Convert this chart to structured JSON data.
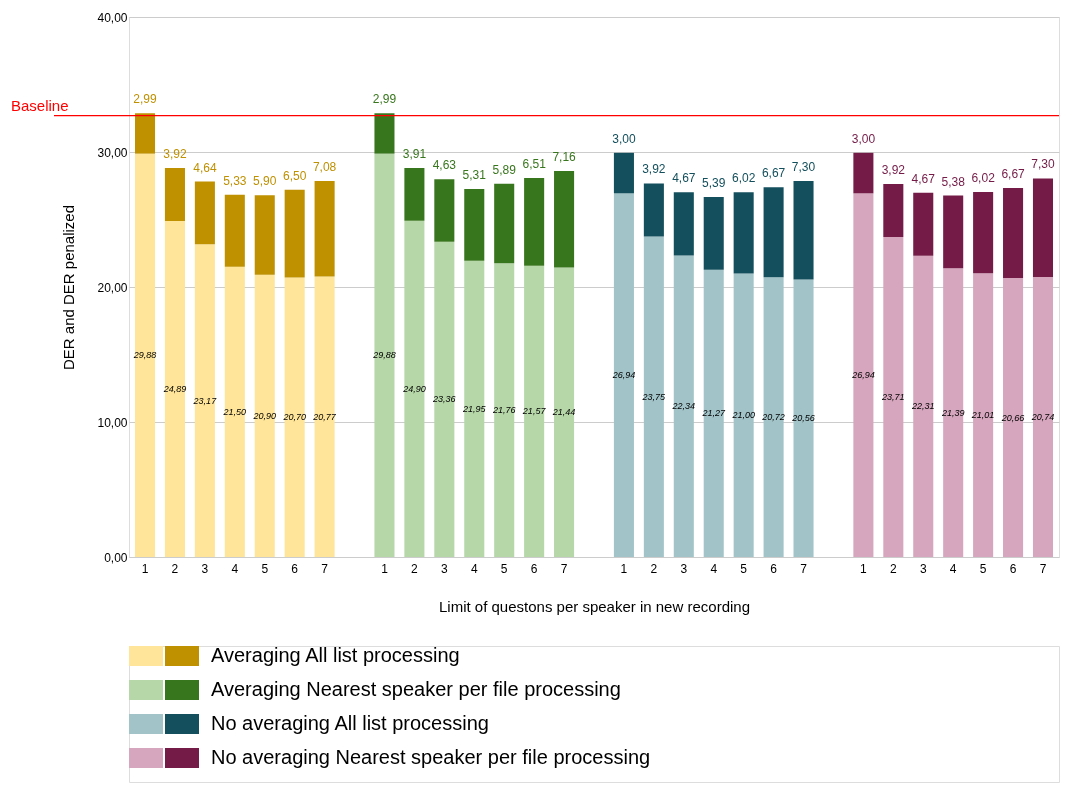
{
  "chart_data": {
    "type": "bar",
    "stacked": true,
    "xlabel": "Limit of questons per speaker in new recording",
    "ylabel": "DER and DER penalized",
    "categories": [
      "1",
      "2",
      "3",
      "4",
      "5",
      "6",
      "7",
      null,
      "1",
      "2",
      "3",
      "4",
      "5",
      "6",
      "7",
      null,
      "1",
      "2",
      "3",
      "4",
      "5",
      "6",
      "7",
      null,
      "1",
      "2",
      "3",
      "4",
      "5",
      "6",
      "7"
    ],
    "ylim": [
      0,
      40
    ],
    "yticks": [
      {
        "value": 0,
        "label": "0,00"
      },
      {
        "value": 10,
        "label": "10,00"
      },
      {
        "value": 20,
        "label": "20,00"
      },
      {
        "value": 30,
        "label": "30,00"
      },
      {
        "value": 40,
        "label": "40,00"
      }
    ],
    "grid": "y",
    "legend": "bottom",
    "ref_lines": [
      {
        "axis": "y",
        "value": 32.7,
        "label": "Baseline",
        "color": "#ff0000"
      }
    ],
    "series": [
      {
        "color": "#ffe599",
        "values": [
          29.88,
          24.89,
          23.17,
          21.5,
          20.9,
          20.7,
          20.77,
          null,
          null,
          null,
          null,
          null,
          null,
          null,
          null,
          null,
          null,
          null,
          null,
          null,
          null,
          null,
          null,
          null,
          null,
          null,
          null,
          null,
          null,
          null,
          null
        ],
        "value_labels": [
          "29,88",
          "24,89",
          "23,17",
          "21,50",
          "20,90",
          "20,70",
          "20,77",
          null,
          null,
          null,
          null,
          null,
          null,
          null,
          null,
          null,
          null,
          null,
          null,
          null,
          null,
          null,
          null,
          null,
          null,
          null,
          null,
          null,
          null,
          null,
          null
        ]
      },
      {
        "name": "Averaging All list processing",
        "color": "#bf9000",
        "values": [
          2.99,
          3.92,
          4.64,
          5.33,
          5.9,
          6.5,
          7.08,
          null,
          null,
          null,
          null,
          null,
          null,
          null,
          null,
          null,
          null,
          null,
          null,
          null,
          null,
          null,
          null,
          null,
          null,
          null,
          null,
          null,
          null,
          null,
          null
        ],
        "value_labels": [
          "2,99",
          "3,92",
          "4,64",
          "5,33",
          "5,90",
          "6,50",
          "7,08",
          null,
          null,
          null,
          null,
          null,
          null,
          null,
          null,
          null,
          null,
          null,
          null,
          null,
          null,
          null,
          null,
          null,
          null,
          null,
          null,
          null,
          null,
          null,
          null
        ]
      },
      {
        "color": "#b6d7a8",
        "values": [
          null,
          null,
          null,
          null,
          null,
          null,
          null,
          null,
          29.88,
          24.9,
          23.36,
          21.95,
          21.76,
          21.57,
          21.44,
          null,
          null,
          null,
          null,
          null,
          null,
          null,
          null,
          null,
          null,
          null,
          null,
          null,
          null,
          null,
          null
        ],
        "value_labels": [
          null,
          null,
          null,
          null,
          null,
          null,
          null,
          null,
          "29,88",
          "24,90",
          "23,36",
          "21,95",
          "21,76",
          "21,57",
          "21,44",
          null,
          null,
          null,
          null,
          null,
          null,
          null,
          null,
          null,
          null,
          null,
          null,
          null,
          null,
          null,
          null
        ]
      },
      {
        "name": "Averaging Nearest speaker per file processing",
        "color": "#38761d",
        "values": [
          null,
          null,
          null,
          null,
          null,
          null,
          null,
          null,
          2.99,
          3.91,
          4.63,
          5.31,
          5.89,
          6.51,
          7.16,
          null,
          null,
          null,
          null,
          null,
          null,
          null,
          null,
          null,
          null,
          null,
          null,
          null,
          null,
          null,
          null
        ],
        "value_labels": [
          null,
          null,
          null,
          null,
          null,
          null,
          null,
          null,
          "2,99",
          "3,91",
          "4,63",
          "5,31",
          "5,89",
          "6,51",
          "7,16",
          null,
          null,
          null,
          null,
          null,
          null,
          null,
          null,
          null,
          null,
          null,
          null,
          null,
          null,
          null,
          null
        ]
      },
      {
        "color": "#a2c4c9",
        "values": [
          null,
          null,
          null,
          null,
          null,
          null,
          null,
          null,
          null,
          null,
          null,
          null,
          null,
          null,
          null,
          null,
          26.94,
          23.75,
          22.34,
          21.27,
          21.0,
          20.72,
          20.56,
          null,
          null,
          null,
          null,
          null,
          null,
          null,
          null
        ],
        "value_labels": [
          null,
          null,
          null,
          null,
          null,
          null,
          null,
          null,
          null,
          null,
          null,
          null,
          null,
          null,
          null,
          null,
          "26,94",
          "23,75",
          "22,34",
          "21,27",
          "21,00",
          "20,72",
          "20,56",
          null,
          null,
          null,
          null,
          null,
          null,
          null,
          null
        ]
      },
      {
        "name": "No averaging All list processing",
        "color": "#134f5c",
        "values": [
          null,
          null,
          null,
          null,
          null,
          null,
          null,
          null,
          null,
          null,
          null,
          null,
          null,
          null,
          null,
          null,
          3.0,
          3.92,
          4.67,
          5.39,
          6.02,
          6.67,
          7.3,
          null,
          null,
          null,
          null,
          null,
          null,
          null,
          null
        ],
        "value_labels": [
          null,
          null,
          null,
          null,
          null,
          null,
          null,
          null,
          null,
          null,
          null,
          null,
          null,
          null,
          null,
          null,
          "3,00",
          "3,92",
          "4,67",
          "5,39",
          "6,02",
          "6,67",
          "7,30",
          null,
          null,
          null,
          null,
          null,
          null,
          null,
          null
        ]
      },
      {
        "color": "#d5a6bd",
        "values": [
          null,
          null,
          null,
          null,
          null,
          null,
          null,
          null,
          null,
          null,
          null,
          null,
          null,
          null,
          null,
          null,
          null,
          null,
          null,
          null,
          null,
          null,
          null,
          null,
          26.94,
          23.71,
          22.31,
          21.39,
          21.01,
          20.66,
          20.74
        ],
        "value_labels": [
          null,
          null,
          null,
          null,
          null,
          null,
          null,
          null,
          null,
          null,
          null,
          null,
          null,
          null,
          null,
          null,
          null,
          null,
          null,
          null,
          null,
          null,
          null,
          null,
          "26,94",
          "23,71",
          "22,31",
          "21,39",
          "21,01",
          "20,66",
          "20,74"
        ]
      },
      {
        "name": "No averaging Nearest speaker per file processing",
        "color": "#741b47",
        "values": [
          null,
          null,
          null,
          null,
          null,
          null,
          null,
          null,
          null,
          null,
          null,
          null,
          null,
          null,
          null,
          null,
          null,
          null,
          null,
          null,
          null,
          null,
          null,
          null,
          3.0,
          3.92,
          4.67,
          5.38,
          6.02,
          6.67,
          7.3
        ],
        "value_labels": [
          null,
          null,
          null,
          null,
          null,
          null,
          null,
          null,
          null,
          null,
          null,
          null,
          null,
          null,
          null,
          null,
          null,
          null,
          null,
          null,
          null,
          null,
          null,
          null,
          "3,00",
          "3,92",
          "4,67",
          "5,38",
          "6,02",
          "6,67",
          "7,30"
        ]
      }
    ]
  }
}
